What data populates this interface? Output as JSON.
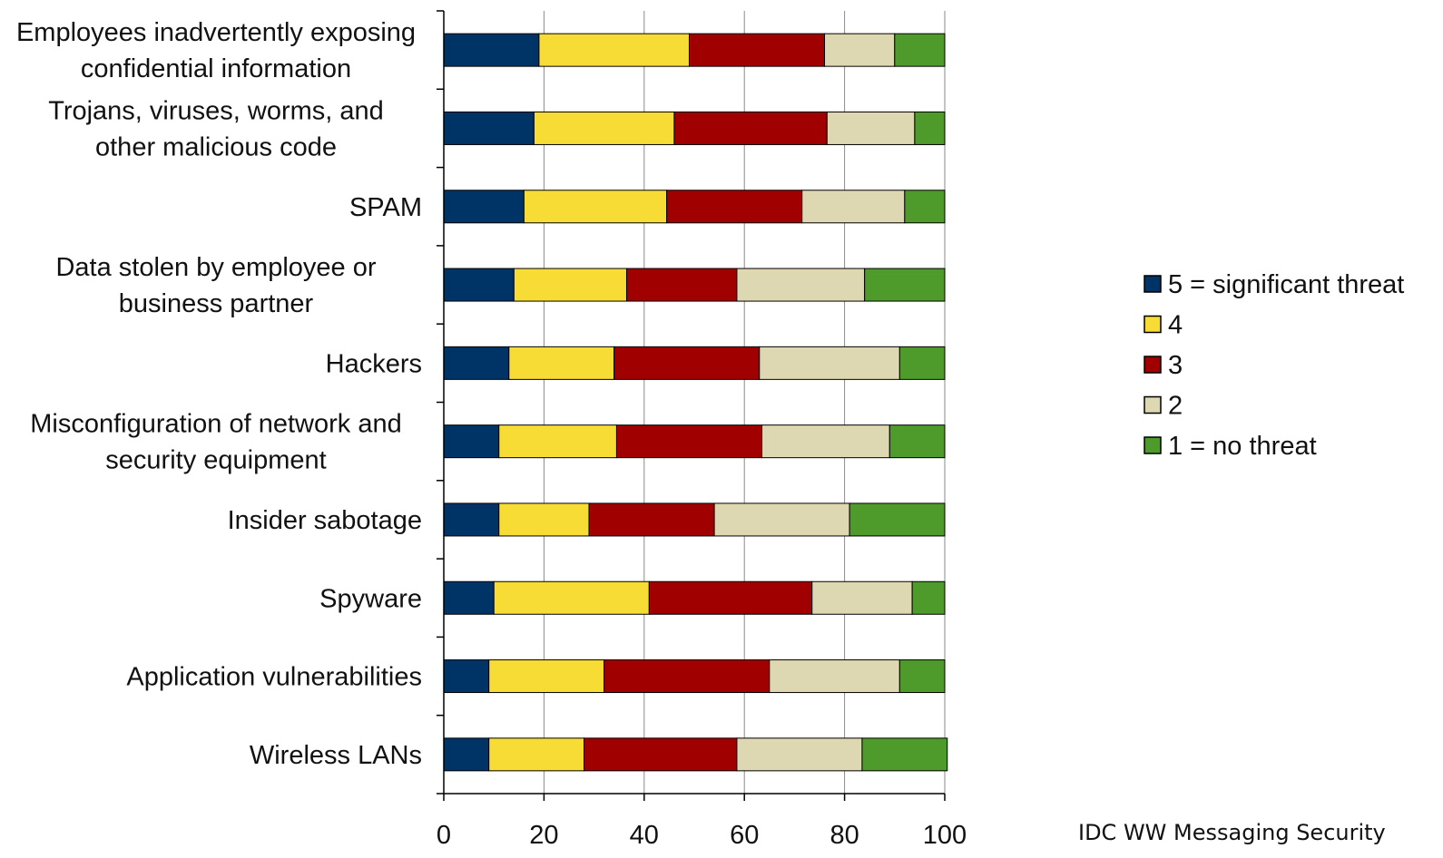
{
  "chart_data": {
    "type": "bar",
    "orientation": "horizontal",
    "stacked": true,
    "categories": [
      "Employees inadvertently exposing confidential information",
      "Trojans, viruses, worms, and other malicious code",
      "SPAM",
      "Data stolen by employee or business partner",
      "Hackers",
      "Misconfiguration of network and security equipment",
      "Insider sabotage",
      "Spyware",
      "Application vulnerabilities",
      "Wireless LANs"
    ],
    "category_lines": [
      [
        "Employees inadvertently exposing",
        "confidential information"
      ],
      [
        "Trojans, viruses, worms, and",
        "other malicious code"
      ],
      [
        "SPAM"
      ],
      [
        "Data stolen by employee or",
        "business partner"
      ],
      [
        "Hackers"
      ],
      [
        "Misconfiguration of network and",
        "security equipment"
      ],
      [
        "Insider sabotage"
      ],
      [
        "Spyware"
      ],
      [
        "Application vulnerabilities"
      ],
      [
        "Wireless LANs"
      ]
    ],
    "series": [
      {
        "name": "5 = significant threat",
        "color": "#003366",
        "values": [
          19,
          18,
          16,
          14,
          13,
          11,
          11,
          10,
          9,
          9
        ]
      },
      {
        "name": "4",
        "color": "#F7DC35",
        "values": [
          30,
          28,
          28.5,
          22.5,
          21,
          23.5,
          18,
          31,
          23,
          19
        ]
      },
      {
        "name": "3",
        "color": "#A00000",
        "values": [
          27,
          30.5,
          27,
          22,
          29,
          29,
          25,
          32.5,
          33,
          30.5
        ]
      },
      {
        "name": "2",
        "color": "#DDD7B2",
        "values": [
          14,
          17.5,
          20.5,
          25.5,
          28,
          25.5,
          27,
          20,
          26,
          25
        ]
      },
      {
        "name": "1 = no threat",
        "color": "#4E9A2A",
        "values": [
          10,
          6,
          8,
          16,
          9,
          11,
          19,
          6.5,
          9,
          17
        ]
      }
    ],
    "xlim": [
      0,
      100
    ],
    "xticks": [
      "0",
      "20",
      "40",
      "60",
      "80",
      "100"
    ],
    "grid": "vertical",
    "legend_position": "right",
    "title": "",
    "xlabel": "",
    "ylabel": ""
  },
  "source_note": "IDC WW Messaging Security"
}
